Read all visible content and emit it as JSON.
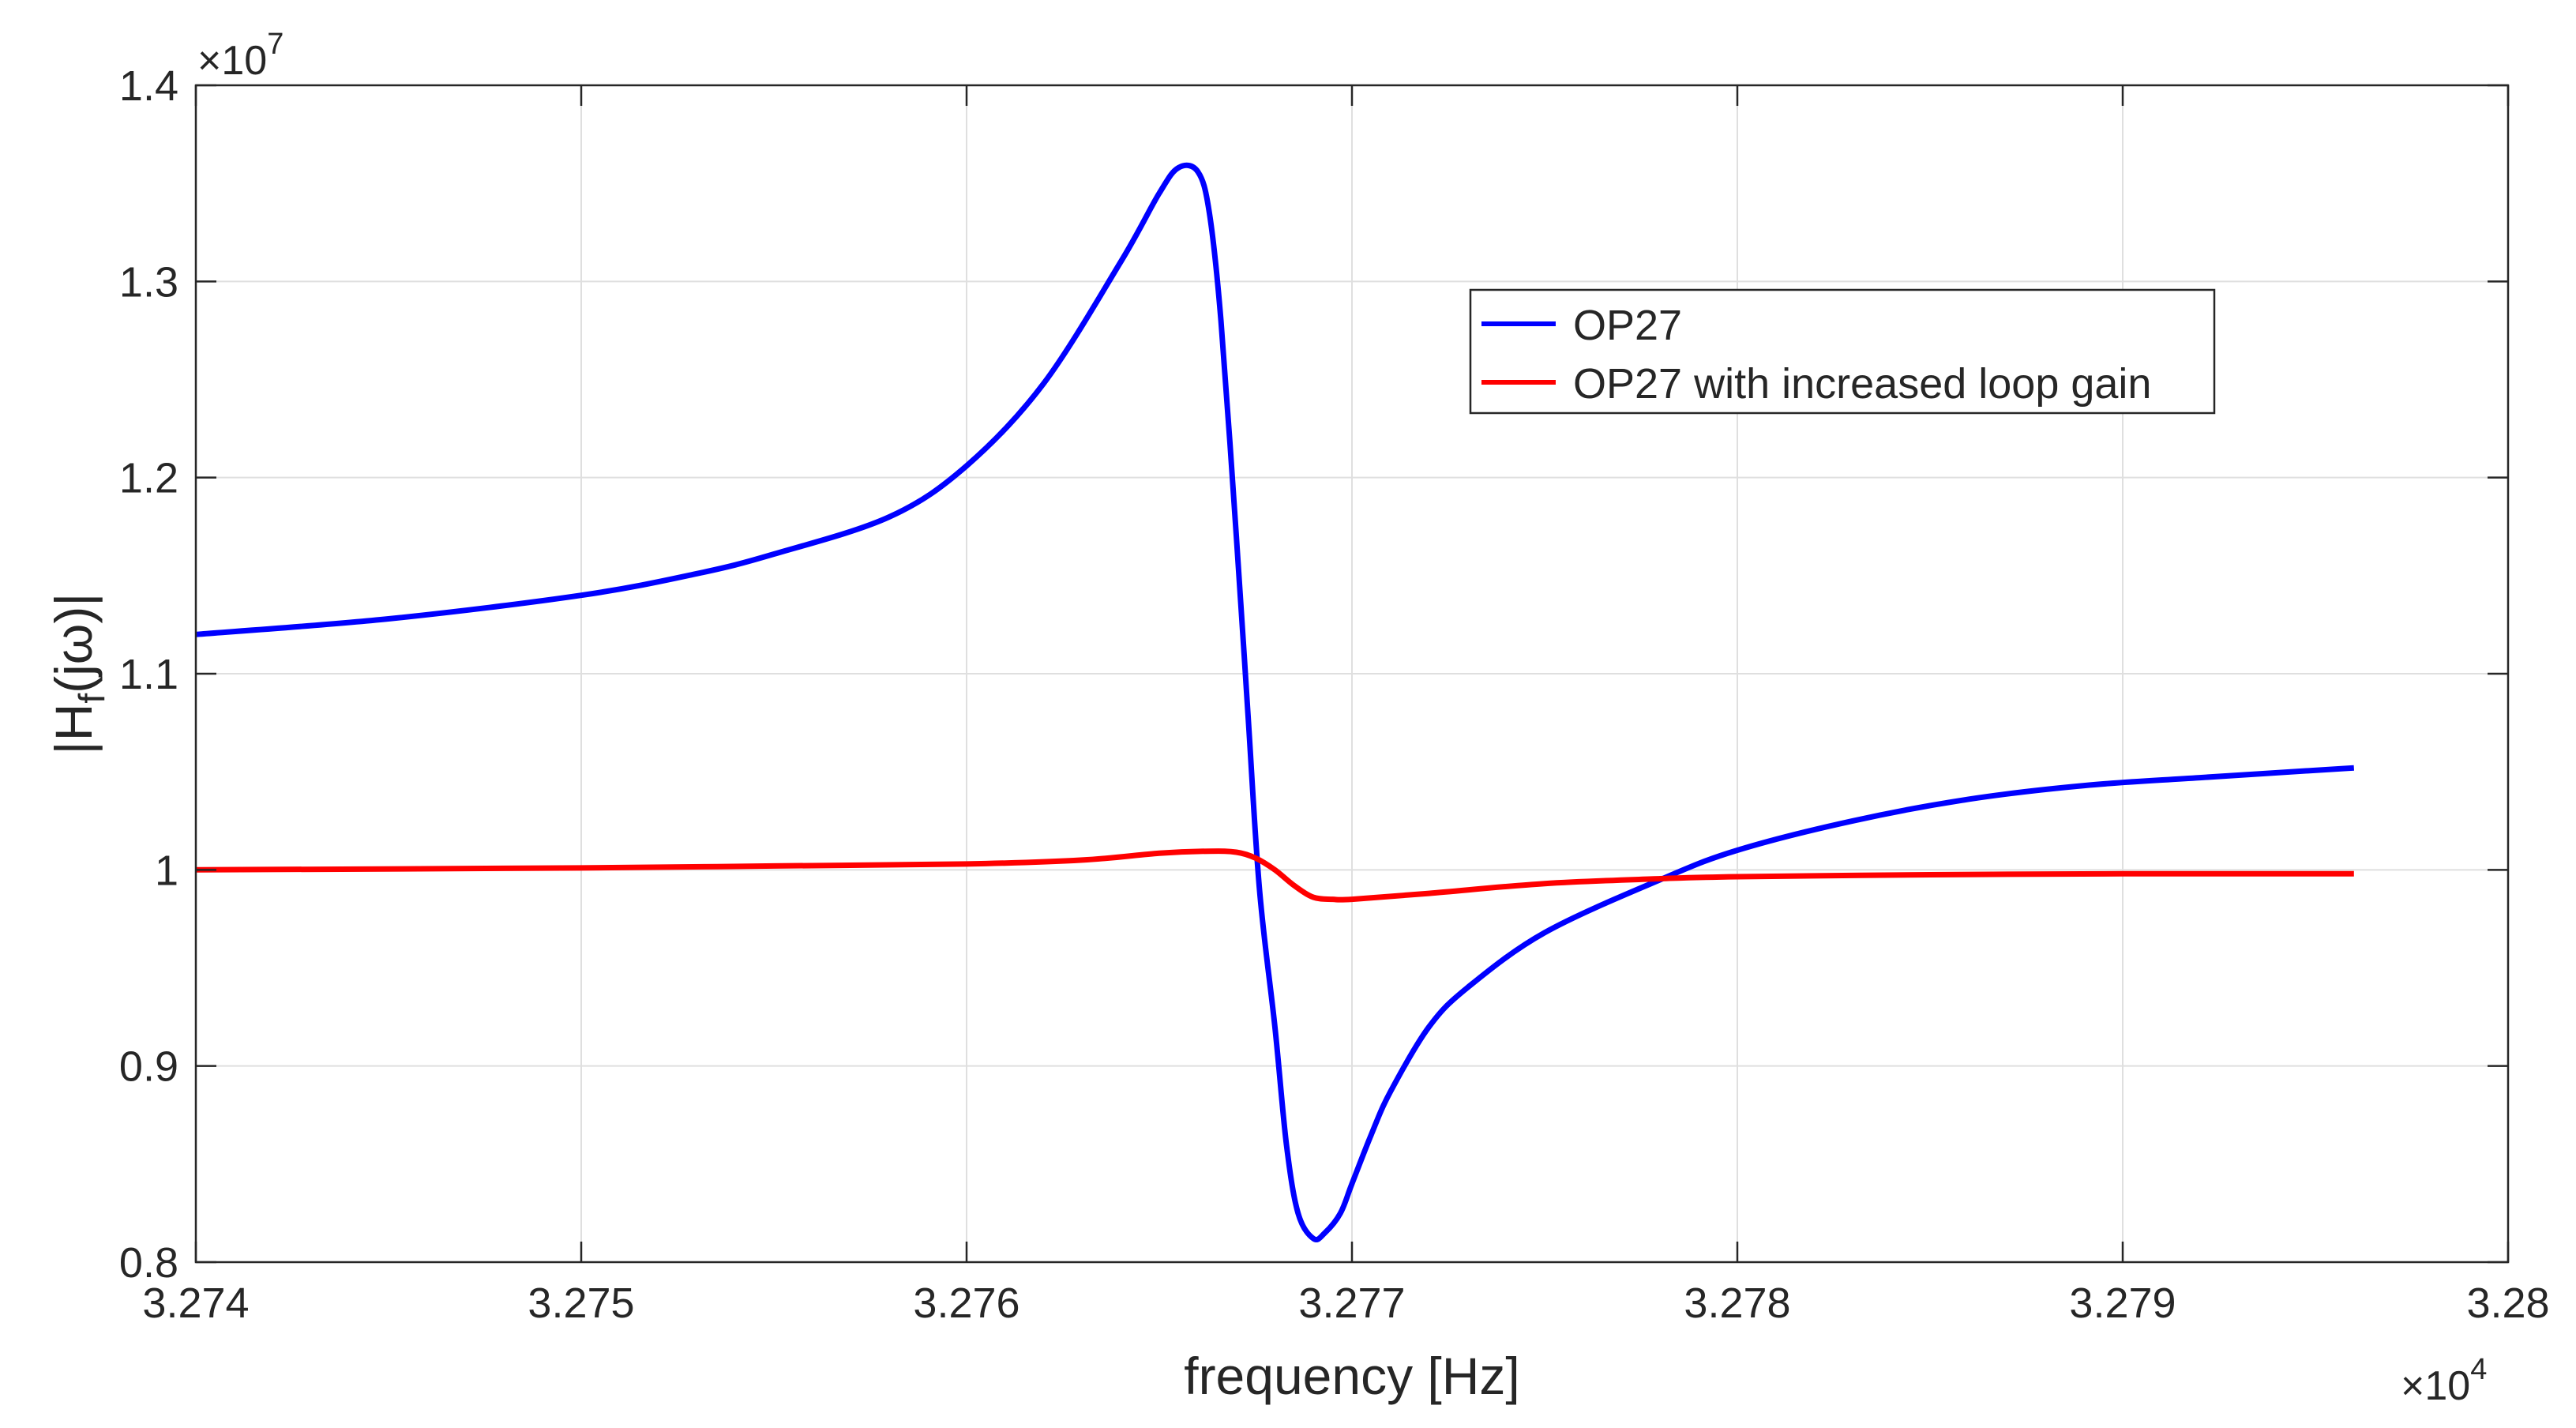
{
  "chart_data": {
    "type": "line",
    "title": "",
    "xlabel": "frequency [Hz]",
    "ylabel_parts": {
      "base": "|H",
      "subscript": "f",
      "argument": "(jω)|"
    },
    "x_exponent": {
      "prefix": "×10",
      "power": "4"
    },
    "y_exponent": {
      "prefix": "×10",
      "power": "7"
    },
    "xlim": [
      3.274,
      3.28
    ],
    "ylim": [
      0.8,
      1.4
    ],
    "x_unit_note": "x values in units of 10^4 Hz",
    "y_unit_note": "y values in units of 10^7",
    "xticks": [
      3.274,
      3.275,
      3.276,
      3.277,
      3.278,
      3.279,
      3.28
    ],
    "xtick_labels": [
      "3.274",
      "3.275",
      "3.276",
      "3.277",
      "3.278",
      "3.279",
      "3.28"
    ],
    "yticks": [
      0.8,
      0.9,
      1.0,
      1.1,
      1.2,
      1.3,
      1.4
    ],
    "ytick_labels": [
      "0.8",
      "0.9",
      "1",
      "1.1",
      "1.2",
      "1.3",
      "1.4"
    ],
    "grid": true,
    "legend_position": "upper-right inside axes",
    "series": [
      {
        "name": "OP27",
        "color": "#0000ff",
        "x": [
          3.274,
          3.2745,
          3.275,
          3.2753,
          3.2755,
          3.2758,
          3.276,
          3.2762,
          3.2764,
          3.2765,
          3.27655,
          3.2766,
          3.27663,
          3.27666,
          3.2767,
          3.27673,
          3.27676,
          3.2768,
          3.27683,
          3.27686,
          3.2769,
          3.27693,
          3.27697,
          3.277,
          3.27705,
          3.2771,
          3.2772,
          3.2773,
          3.2775,
          3.2778,
          3.278,
          3.2783,
          3.2786,
          3.2789,
          3.2792,
          3.2796
        ],
        "y": [
          1.12,
          1.128,
          1.14,
          1.151,
          1.161,
          1.18,
          1.206,
          1.248,
          1.31,
          1.345,
          1.358,
          1.356,
          1.335,
          1.28,
          1.17,
          1.08,
          0.99,
          0.92,
          0.86,
          0.825,
          0.812,
          0.815,
          0.825,
          0.84,
          0.865,
          0.887,
          0.92,
          0.94,
          0.968,
          0.995,
          1.01,
          1.025,
          1.036,
          1.043,
          1.047,
          1.052
        ]
      },
      {
        "name": "OP27 with increased loop gain",
        "color": "#ff0000",
        "x": [
          3.274,
          3.275,
          3.2755,
          3.276,
          3.2763,
          3.2765,
          3.27663,
          3.2767,
          3.27675,
          3.2768,
          3.27685,
          3.2769,
          3.27695,
          3.277,
          3.2772,
          3.2775,
          3.2778,
          3.278,
          3.2785,
          3.279,
          3.2796
        ],
        "y": [
          1.0,
          1.001,
          1.002,
          1.003,
          1.005,
          1.0085,
          1.0095,
          1.009,
          1.006,
          1.0,
          0.992,
          0.986,
          0.985,
          0.985,
          0.988,
          0.993,
          0.9955,
          0.9965,
          0.9975,
          0.998,
          0.998
        ]
      }
    ]
  }
}
